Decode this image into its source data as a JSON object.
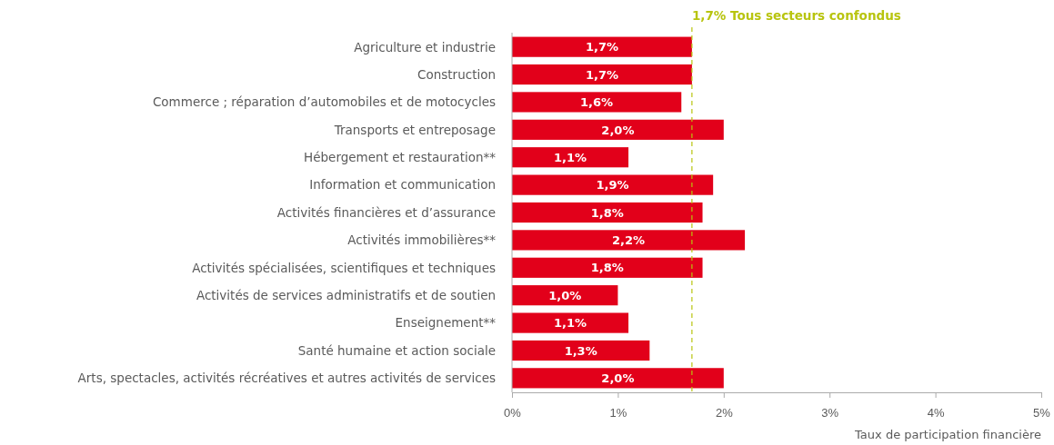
{
  "chart_data": {
    "type": "bar",
    "orientation": "horizontal",
    "categories": [
      "Agriculture et industrie",
      "Construction",
      "Commerce ; réparation d’automobiles et de motocycles",
      "Transports et entreposage",
      "Hébergement et restauration**",
      "Information et communication",
      "Activités financières et d’assurance",
      "Activités immobilières**",
      "Activités spécialisées, scientifiques et techniques",
      "Activités de services administratifs et de soutien",
      "Enseignement**",
      "Santé humaine et action sociale",
      "Arts, spectacles, activités récréatives et autres activités de services"
    ],
    "values": [
      1.7,
      1.7,
      1.6,
      2.0,
      1.1,
      1.9,
      1.8,
      2.2,
      1.8,
      1.0,
      1.1,
      1.3,
      2.0
    ],
    "value_labels": [
      "1,7%",
      "1,7%",
      "1,6%",
      "2,0%",
      "1,1%",
      "1,9%",
      "1,8%",
      "2,2%",
      "1,8%",
      "1,0%",
      "1,1%",
      "1,3%",
      "2,0%"
    ],
    "color": "#e2001a",
    "xlabel": "Taux de participation financière",
    "xlim": [
      0,
      5
    ],
    "xticks": [
      {
        "value": 0,
        "label": "0%"
      },
      {
        "value": 1,
        "label": "1%"
      },
      {
        "value": 2,
        "label": "2%"
      },
      {
        "value": 3,
        "label": "3%"
      },
      {
        "value": 4,
        "label": "4%"
      },
      {
        "value": 5,
        "label": "5%"
      }
    ],
    "ref_lines": [
      {
        "axis": "x",
        "value": 1.7,
        "label": "1,7% Tous secteurs confondus",
        "color": "#b8c40f",
        "line_style": "dashed"
      }
    ],
    "grid": false
  }
}
